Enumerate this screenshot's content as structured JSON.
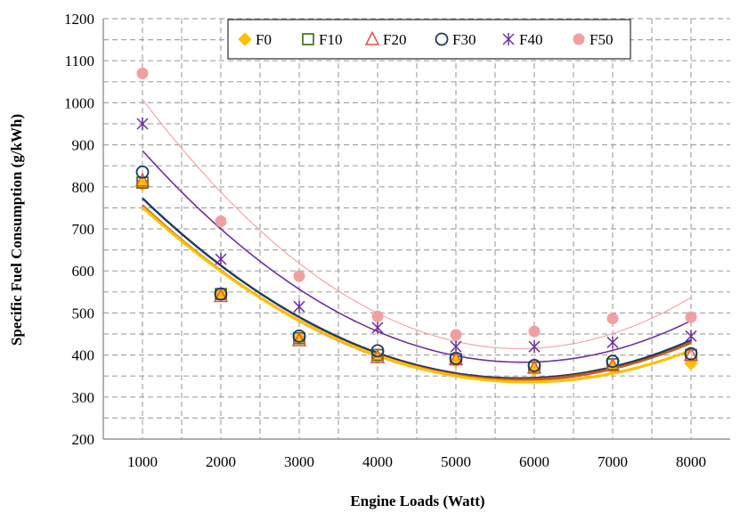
{
  "chart_data": {
    "type": "scatter",
    "xlabel": "Engine Loads (Watt)",
    "ylabel": "Specific Fuel Consumption (g/kWh)",
    "x": [
      1000,
      2000,
      3000,
      4000,
      5000,
      6000,
      7000,
      8000
    ],
    "xlim": [
      500,
      8500
    ],
    "ylim": [
      200,
      1200
    ],
    "x_ticks": [
      "1000",
      "2000",
      "3000",
      "4000",
      "5000",
      "6000",
      "7000",
      "8000"
    ],
    "y_ticks": [
      "200",
      "300",
      "400",
      "500",
      "600",
      "700",
      "800",
      "900",
      "1000",
      "1100",
      "1200"
    ],
    "grid": true,
    "legend_position": "top",
    "trendline": "polynomial order 2",
    "series": [
      {
        "name": "F0",
        "marker": "diamond-filled",
        "color": "#FFC000",
        "trend_color": "#FFC000",
        "values": [
          805,
          545,
          440,
          395,
          385,
          365,
          370,
          380
        ]
      },
      {
        "name": "F10",
        "marker": "square-open",
        "color": "#4E7A1F",
        "trend_color": "#C55A11",
        "values": [
          810,
          545,
          440,
          400,
          390,
          370,
          378,
          400
        ]
      },
      {
        "name": "F20",
        "marker": "triangle-open",
        "color": "#E0504A",
        "trend_color": "#E0504A",
        "values": [
          815,
          540,
          435,
          395,
          390,
          370,
          375,
          400
        ]
      },
      {
        "name": "F30",
        "marker": "circle-open",
        "color": "#1F3864",
        "trend_color": "#1F3864",
        "values": [
          835,
          545,
          445,
          410,
          392,
          375,
          385,
          403
        ]
      },
      {
        "name": "F40",
        "marker": "star-x",
        "color": "#7030A0",
        "trend_color": "#7030A0",
        "values": [
          950,
          628,
          515,
          465,
          420,
          420,
          430,
          445
        ]
      },
      {
        "name": "F50",
        "marker": "circle-filled",
        "color": "#F0A0A0",
        "trend_color": "#F0A0A0",
        "values": [
          1070,
          718,
          588,
          492,
          448,
          456,
          487,
          490
        ]
      }
    ]
  }
}
